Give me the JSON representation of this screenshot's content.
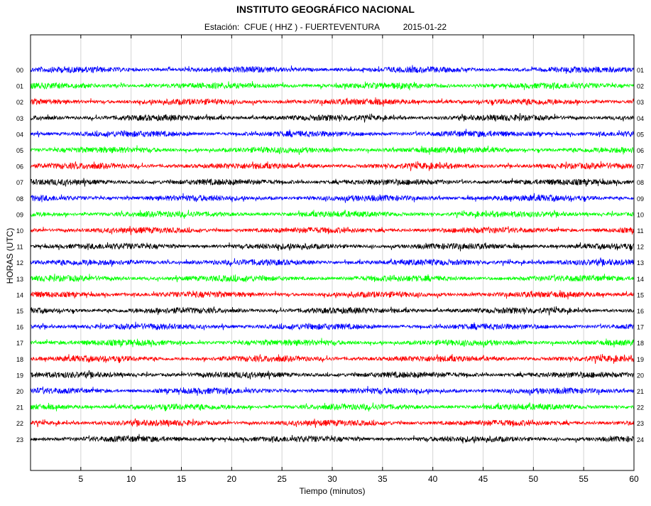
{
  "title": "INSTITUTO GEOGRÁFICO NACIONAL",
  "subtitle": {
    "station_label": "Estación:",
    "station": "CFUE ( HHZ ) - FUERTEVENTURA",
    "date": "2015-01-22"
  },
  "chart_data": {
    "type": "line",
    "title": "INSTITUTO GEOGRÁFICO NACIONAL",
    "xlabel": "Tiempo (minutos)",
    "ylabel": "HORAS (UTC)",
    "xlim": [
      0,
      60
    ],
    "x_ticks": [
      5,
      10,
      15,
      20,
      25,
      30,
      35,
      40,
      45,
      50,
      55,
      60
    ],
    "grid": "vertical lines at every 5 minutes",
    "left_labels": [
      "00",
      "01",
      "02",
      "03",
      "04",
      "05",
      "06",
      "07",
      "08",
      "09",
      "10",
      "11",
      "12",
      "13",
      "14",
      "15",
      "16",
      "17",
      "18",
      "19",
      "20",
      "21",
      "22",
      "23"
    ],
    "right_labels": [
      "01",
      "02",
      "03",
      "04",
      "05",
      "06",
      "07",
      "08",
      "09",
      "10",
      "11",
      "12",
      "13",
      "14",
      "15",
      "16",
      "17",
      "18",
      "19",
      "20",
      "21",
      "22",
      "23",
      "24"
    ],
    "color_cycle": [
      "#0000ff",
      "#00ff00",
      "#ff0000",
      "#000000"
    ],
    "series_description": "24 hourly seismograph traces (helicorder), one per hour, continuous noise"
  }
}
